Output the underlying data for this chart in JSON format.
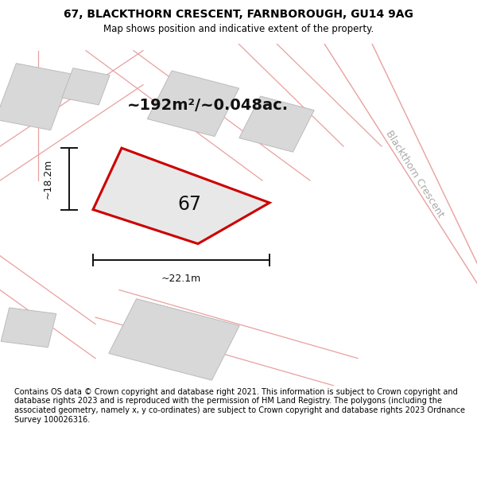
{
  "title": "67, BLACKTHORN CRESCENT, FARNBOROUGH, GU14 9AG",
  "subtitle": "Map shows position and indicative extent of the property.",
  "footer": "Contains OS data © Crown copyright and database right 2021. This information is subject to Crown copyright and database rights 2023 and is reproduced with the permission of HM Land Registry. The polygons (including the associated geometry, namely x, y co-ordinates) are subject to Crown copyright and database rights 2023 Ordnance Survey 100026316.",
  "area_label": "~192m²/~0.048ac.",
  "width_label": "~22.1m",
  "height_label": "~18.2m",
  "number_label": "67",
  "background_color": "#ffffff",
  "map_bg_color": "#ffffff",
  "plot_edge_color": "#cc0000",
  "plot_fill_color": "#e8e8e8",
  "road_line_color": "#e8a0a0",
  "building_fill": "#d8d8d8",
  "building_edge": "#bbbbbb",
  "street_label_color": "#aaaaaa",
  "dim_line_color": "#111111",
  "street_label": "Blackthorn Crescent",
  "title_fontsize": 10,
  "subtitle_fontsize": 8.5,
  "footer_fontsize": 7.0,
  "area_fontsize": 14,
  "dim_fontsize": 9,
  "number_fontsize": 17,
  "street_fontsize": 9
}
